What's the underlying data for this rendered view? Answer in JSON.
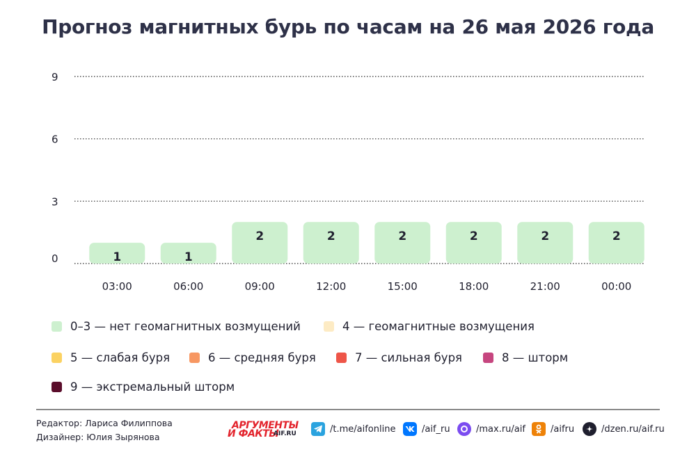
{
  "chart_data": {
    "type": "bar",
    "title": "Прогноз магнитных бурь по часам на 26 мая 2026 года",
    "categories": [
      "03:00",
      "06:00",
      "09:00",
      "12:00",
      "15:00",
      "18:00",
      "21:00",
      "00:00"
    ],
    "values": [
      1,
      1,
      2,
      2,
      2,
      2,
      2,
      2
    ],
    "y_ticks": [
      "0",
      "3",
      "6",
      "9"
    ],
    "ylim": [
      0,
      9
    ],
    "grid": true,
    "bar_color": "#cdf0cf",
    "legend_position": "bottom",
    "legend": [
      {
        "label": "0–3 — нет геомагнитных возмущений",
        "color": "#cdf0cf"
      },
      {
        "label": "4 — геомагнитные возмущения",
        "color": "#fdebc4"
      },
      {
        "label": "5 — слабая буря",
        "color": "#fbd262"
      },
      {
        "label": "6 — средняя буря",
        "color": "#f79762"
      },
      {
        "label": "7 — сильная буря",
        "color": "#ee5548"
      },
      {
        "label": "8 — шторм",
        "color": "#c6467f"
      },
      {
        "label": "9 — экстремальный шторм",
        "color": "#5a0d2b"
      }
    ]
  },
  "footer": {
    "editor": "Редактор: Лариса Филиппова",
    "designer": "Дизайнер: Юлия Зырянова",
    "logo_line1": "АРГУМЕНТЫ",
    "logo_line2": "И ФАКТЫ",
    "logo_site": "AIF.RU",
    "social": [
      {
        "icon": "telegram-icon",
        "label": "/t.me/aifonline",
        "color": "#2aa3df"
      },
      {
        "icon": "vk-icon",
        "label": "/aif_ru",
        "color": "#0077ff"
      },
      {
        "icon": "max-icon",
        "label": "/max.ru/aif",
        "color": "#7b4cf0"
      },
      {
        "icon": "odnoklassniki-icon",
        "label": "/aifru",
        "color": "#ee8208"
      },
      {
        "icon": "dzen-icon",
        "label": "/dzen.ru/aif.ru",
        "color": "#1f1f2e"
      }
    ]
  }
}
